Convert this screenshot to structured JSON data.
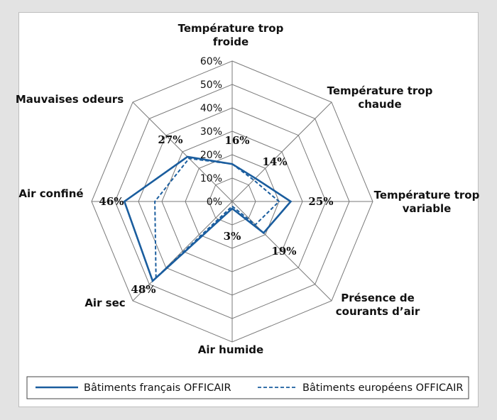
{
  "chart_data": {
    "type": "radar",
    "axes": [
      "Température trop\nfroide",
      "Température trop\nchaude",
      "Température trop\nvariable",
      "Présence de\ncourants d’air",
      "Air humide",
      "Air sec",
      "Air confiné",
      "Mauvaises odeurs"
    ],
    "ticks": [
      "0%",
      "10%",
      "20%",
      "30%",
      "40%",
      "50%",
      "60%"
    ],
    "rmax": 60,
    "series": [
      {
        "name": "Bâtiments français OFFICAIR",
        "style": "solid",
        "values": [
          16,
          14,
          25,
          19,
          3,
          48,
          46,
          27
        ]
      },
      {
        "name": "Bâtiments européens OFFICAIR",
        "style": "dashed",
        "values": [
          16,
          13,
          20,
          14,
          2,
          46,
          33,
          26
        ]
      }
    ],
    "data_labels": [
      "16%",
      "14%",
      "25%",
      "19%",
      "3%",
      "48%",
      "46%",
      "27%"
    ],
    "colors": {
      "line": "#1a5d9e",
      "grid": "#7a7a7a"
    }
  }
}
